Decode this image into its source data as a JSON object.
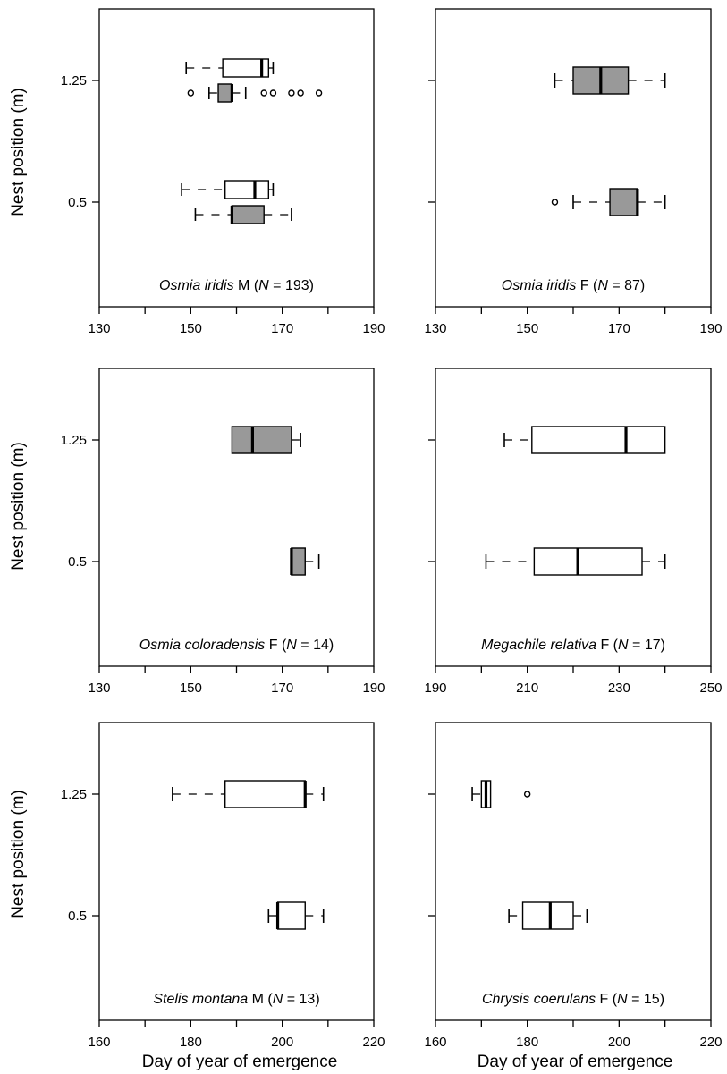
{
  "figure": {
    "y_axis_label": "Nest position (m)",
    "x_axis_label": "Day of year of emergence",
    "legend": {
      "white_box": "",
      "gray_box": ""
    },
    "colors": {
      "gray_fill": "#999999",
      "white_fill": "#ffffff",
      "stroke": "#000000"
    }
  },
  "chart_data": [
    {
      "type": "boxplot",
      "title": {
        "species": "Osmia iridis",
        "suffix": " M (",
        "n_label": "N",
        "n_text": " = 193)"
      },
      "xlim": [
        130,
        190
      ],
      "x_ticks": [
        130,
        150,
        170,
        190
      ],
      "x_minor_ticks": [
        140,
        160,
        180
      ],
      "y_ticks": [
        "1.25",
        "0.5"
      ],
      "boxes": [
        {
          "position": "1.25",
          "offset": -1,
          "fill": "white",
          "min": 149,
          "q1": 157,
          "median": 165.5,
          "q3": 167,
          "max": 168,
          "outliers": []
        },
        {
          "position": "1.25",
          "offset": 1,
          "fill": "gray",
          "min": 154,
          "q1": 156,
          "median": 159,
          "q3": 159,
          "max": 162,
          "outliers": [
            150,
            166,
            168,
            172,
            174,
            178
          ]
        },
        {
          "position": "0.5",
          "offset": -1,
          "fill": "white",
          "min": 148,
          "q1": 157.5,
          "median": 164,
          "q3": 167,
          "max": 168,
          "outliers": []
        },
        {
          "position": "0.5",
          "offset": 1,
          "fill": "gray",
          "min": 151,
          "q1": 159,
          "median": 159,
          "q3": 166,
          "max": 172,
          "outliers": []
        }
      ]
    },
    {
      "type": "boxplot",
      "title": {
        "species": "Osmia iridis",
        "suffix": " F (",
        "n_label": "N",
        "n_text": " = 87)"
      },
      "xlim": [
        130,
        190
      ],
      "x_ticks": [
        130,
        150,
        170,
        190
      ],
      "x_minor_ticks": [
        140,
        160,
        180
      ],
      "y_ticks": [
        "1.25",
        "0.5"
      ],
      "boxes": [
        {
          "position": "1.25",
          "offset": 0,
          "fill": "gray",
          "min": 156,
          "q1": 160,
          "median": 166,
          "q3": 172,
          "max": 180,
          "outliers": []
        },
        {
          "position": "0.5",
          "offset": 0,
          "fill": "gray",
          "min": 160,
          "q1": 168,
          "median": 174,
          "q3": 174,
          "max": 180,
          "outliers": [
            156
          ]
        }
      ]
    },
    {
      "type": "boxplot",
      "title": {
        "species": "Osmia coloradensis",
        "suffix": " F (",
        "n_label": "N",
        "n_text": " = 14)"
      },
      "xlim": [
        130,
        190
      ],
      "x_ticks": [
        130,
        150,
        170,
        190
      ],
      "x_minor_ticks": [
        140,
        160,
        180
      ],
      "y_ticks": [
        "1.25",
        "0.5"
      ],
      "boxes": [
        {
          "position": "1.25",
          "offset": 0,
          "fill": "gray",
          "min": 159,
          "q1": 159,
          "median": 163.5,
          "q3": 172,
          "max": 174,
          "outliers": []
        },
        {
          "position": "0.5",
          "offset": 0,
          "fill": "gray",
          "min": 172,
          "q1": 172,
          "median": 172,
          "q3": 175,
          "max": 178,
          "outliers": []
        }
      ]
    },
    {
      "type": "boxplot",
      "title": {
        "species": "Megachile relativa",
        "suffix": " F (",
        "n_label": "N",
        "n_text": " = 17)"
      },
      "xlim": [
        190,
        250
      ],
      "x_ticks": [
        190,
        210,
        230,
        250
      ],
      "x_minor_ticks": [
        200,
        220,
        240
      ],
      "y_ticks": [
        "1.25",
        "0.5"
      ],
      "boxes": [
        {
          "position": "1.25",
          "offset": 0,
          "fill": "white",
          "min": 205,
          "q1": 211,
          "median": 231.5,
          "q3": 240,
          "max": 240,
          "outliers": []
        },
        {
          "position": "0.5",
          "offset": 0,
          "fill": "white",
          "min": 201,
          "q1": 211.5,
          "median": 221,
          "q3": 235,
          "max": 240,
          "outliers": []
        }
      ]
    },
    {
      "type": "boxplot",
      "title": {
        "species": "Stelis montana",
        "suffix": " M (",
        "n_label": "N",
        "n_text": " = 13)"
      },
      "xlim": [
        160,
        220
      ],
      "x_ticks": [
        160,
        180,
        200,
        220
      ],
      "x_minor_ticks": [
        170,
        190,
        210
      ],
      "y_ticks": [
        "1.25",
        "0.5"
      ],
      "boxes": [
        {
          "position": "1.25",
          "offset": 0,
          "fill": "white",
          "min": 176,
          "q1": 187.5,
          "median": 205,
          "q3": 205,
          "max": 209,
          "outliers": []
        },
        {
          "position": "0.5",
          "offset": 0,
          "fill": "white",
          "min": 197,
          "q1": 199,
          "median": 199,
          "q3": 205,
          "max": 209,
          "outliers": []
        }
      ]
    },
    {
      "type": "boxplot",
      "title": {
        "species": "Chrysis coerulans",
        "suffix": " F (",
        "n_label": "N",
        "n_text": " = 15)"
      },
      "xlim": [
        160,
        220
      ],
      "x_ticks": [
        160,
        180,
        200,
        220
      ],
      "x_minor_ticks": [
        170,
        190,
        210
      ],
      "y_ticks": [
        "1.25",
        "0.5"
      ],
      "boxes": [
        {
          "position": "1.25",
          "offset": 0,
          "fill": "white",
          "min": 168,
          "q1": 170,
          "median": 171,
          "q3": 172,
          "max": 172,
          "outliers": [
            180
          ]
        },
        {
          "position": "0.5",
          "offset": 0,
          "fill": "white",
          "min": 176,
          "q1": 179,
          "median": 185,
          "q3": 190,
          "max": 193,
          "outliers": []
        }
      ]
    }
  ]
}
